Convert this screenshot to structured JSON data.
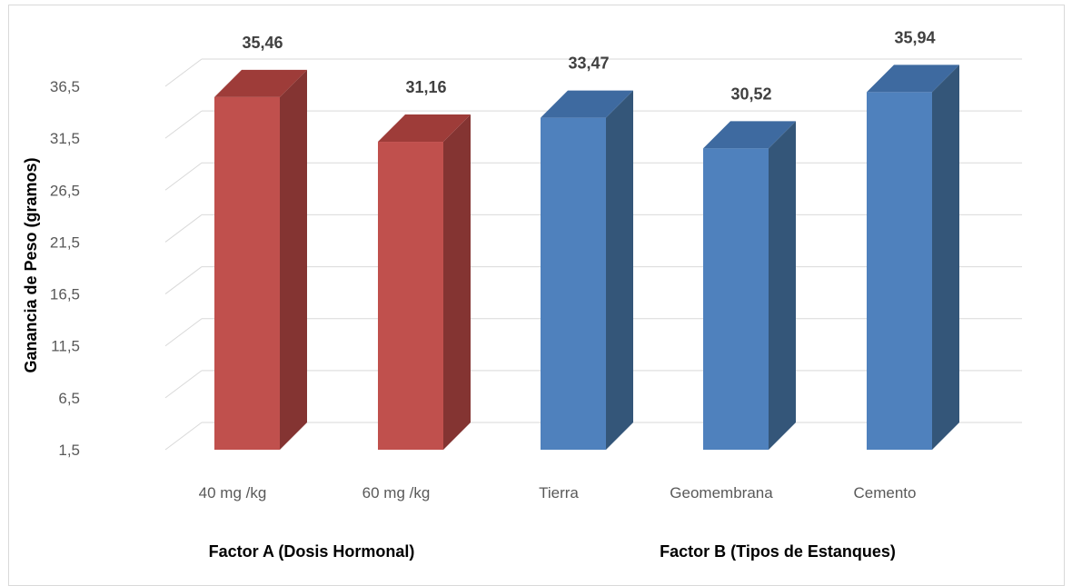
{
  "chart_data": {
    "type": "bar",
    "style": "3d-column",
    "categories": [
      "40 mg /kg",
      "60 mg /kg",
      "Tierra",
      "Geomembrana",
      "Cemento"
    ],
    "values": [
      35.46,
      31.16,
      33.47,
      30.52,
      35.94
    ],
    "value_labels": [
      "35,46",
      "31,16",
      "33,47",
      "30,52",
      "35,94"
    ],
    "colors": [
      "#c0504d",
      "#c0504d",
      "#4f81bd",
      "#4f81bd",
      "#4f81bd"
    ],
    "ylabel": "Ganancia de Peso (gramos)",
    "yticks": [
      "1,5",
      "6,5",
      "11,5",
      "16,5",
      "21,5",
      "26,5",
      "31,5",
      "36,5"
    ],
    "ylim": [
      1.5,
      36.5
    ],
    "grid": true,
    "groups": [
      {
        "label": "Factor A (Dosis Hormonal)",
        "categories": [
          "40 mg /kg",
          "60 mg /kg"
        ]
      },
      {
        "label": "Factor B (Tipos de Estanques)",
        "categories": [
          "Tierra",
          "Geomembrana",
          "Cemento"
        ]
      }
    ]
  }
}
